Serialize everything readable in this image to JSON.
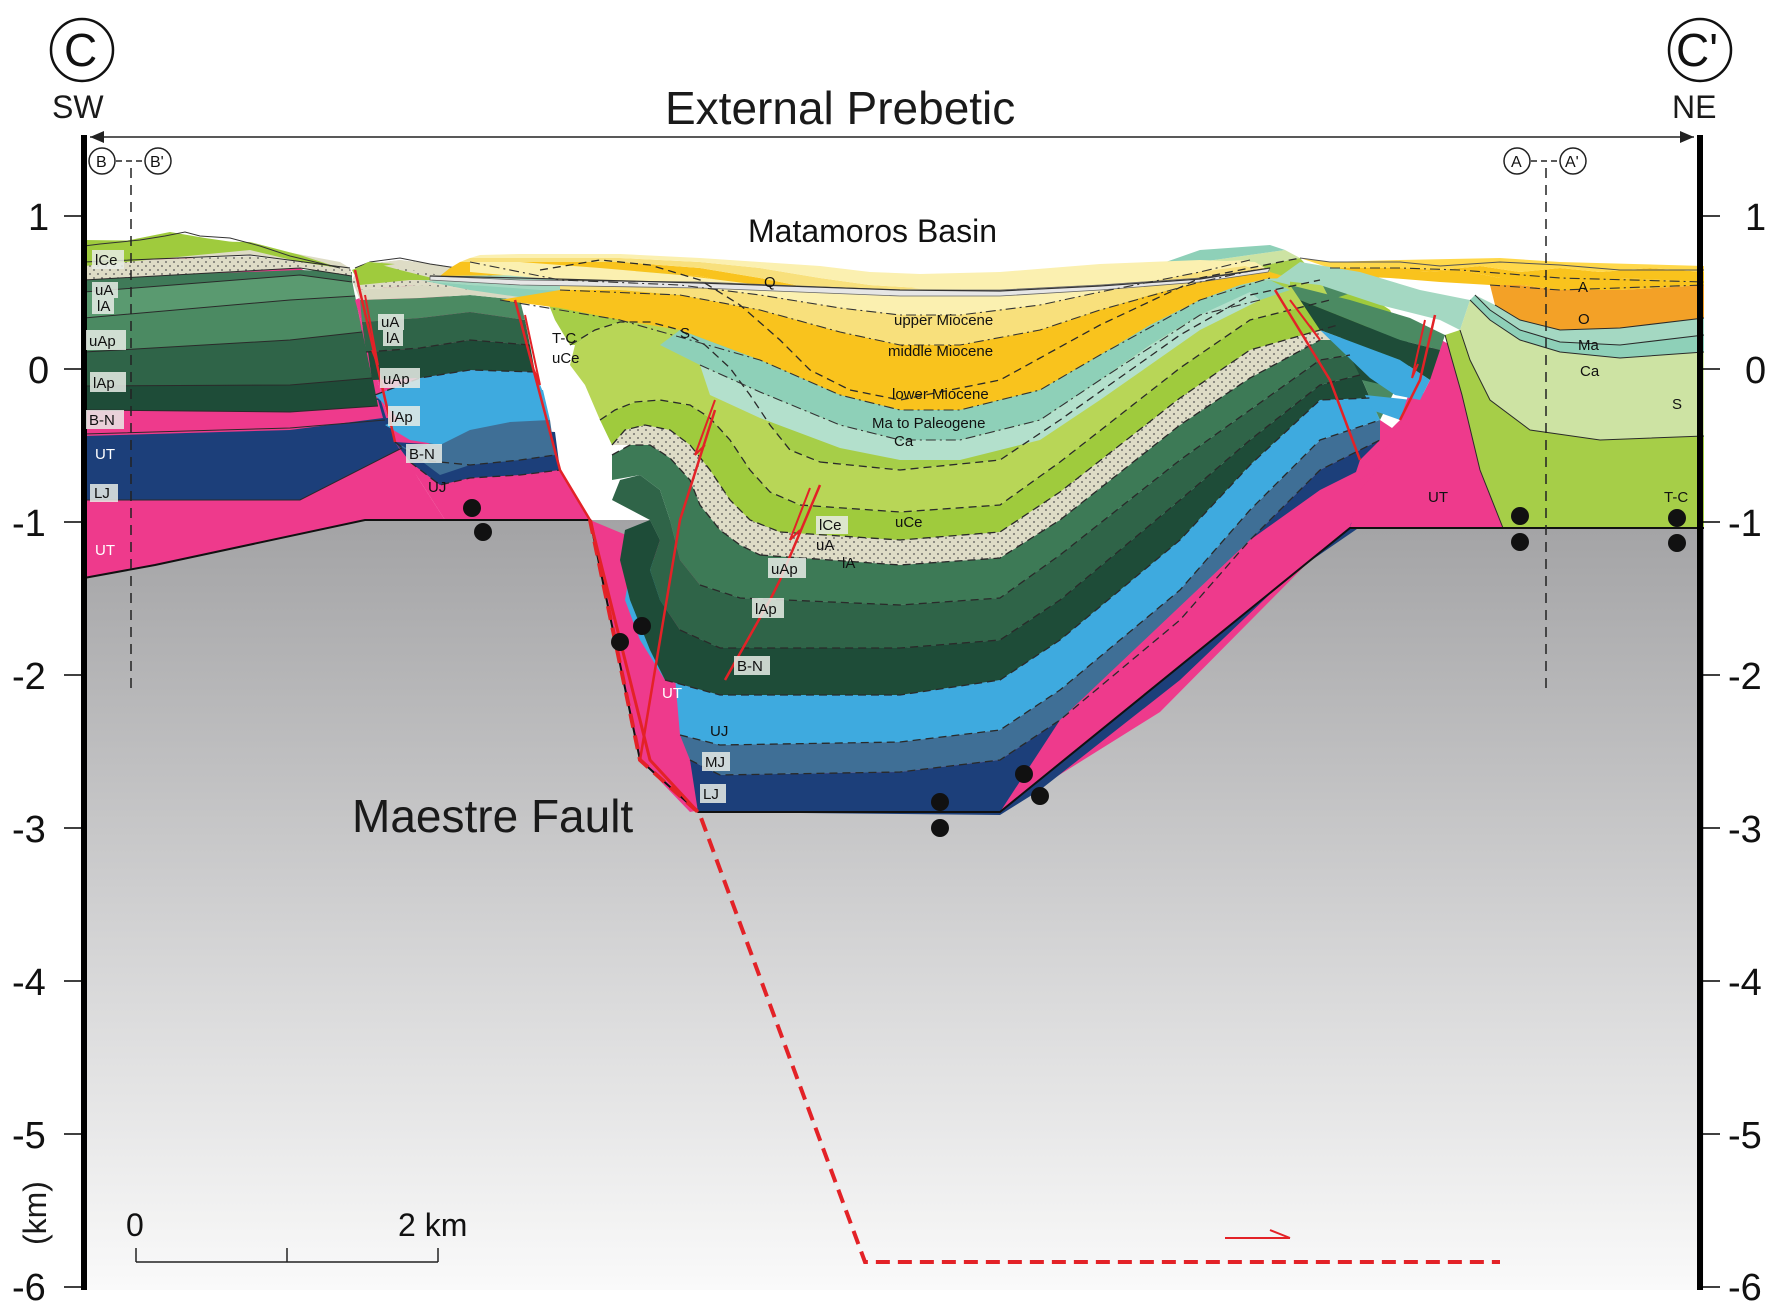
{
  "section": {
    "start_marker": "C",
    "end_marker": "C'",
    "start_direction": "SW",
    "end_direction": "NE",
    "domain_title": "External Prebetic",
    "basin_title": "Matamoros Basin",
    "fault_title": "Maestre Fault",
    "vertical_unit": "(km)",
    "depth_ticks": [
      "1",
      "0",
      "-1",
      "-2",
      "-3",
      "-4",
      "-5",
      "-6"
    ],
    "scale_bar": {
      "start": "0",
      "end": "2 km"
    },
    "crosslines": [
      {
        "left": "B",
        "right": "B'"
      },
      {
        "left": "A",
        "right": "A'"
      }
    ]
  },
  "unit_labels": {
    "left_block": [
      "lCe",
      "uA",
      "lA",
      "uAp",
      "lAp",
      "B-N",
      "UT",
      "LJ",
      "UT"
    ],
    "fault_block_1": [
      "uA",
      "lA",
      "uAp",
      "lAp",
      "B-N",
      "UJ"
    ],
    "fault_block_2": [
      "T-C",
      "uCe",
      "S"
    ],
    "basin_fill": [
      "Q",
      "upper Miocene",
      "middle Miocene",
      "lower Miocene",
      "Ma  to Paleogene",
      "Ca"
    ],
    "syncline": [
      "lCe",
      "uA",
      "lA",
      "uAp",
      "uCe",
      "lAp",
      "B-N",
      "UT",
      "UJ",
      "MJ",
      "LJ"
    ],
    "right_block": [
      "UT",
      "A",
      "O",
      "Ma",
      "Ca",
      "S",
      "T-C"
    ]
  },
  "colors": {
    "basement": "#a3a3a5",
    "UT": "#ee3a8c",
    "LJ": "#1c3f7a",
    "MJ": "#3f6f96",
    "UJ": "#3eaadf",
    "B-N": "#1e4c38",
    "lAp": "#2f6448",
    "uAp": "#4b8a62",
    "lA": "#d9d9c2",
    "lCe": "#9fcb3d",
    "S": "#cde3a3",
    "upper Miocene": "#fbf0b0",
    "middle Miocene": "#f8e07c",
    "lower Miocene": "#f9c31d",
    "Paleogene": "#8ed0b8",
    "O": "#f3a127",
    "fault": "#e32227"
  }
}
